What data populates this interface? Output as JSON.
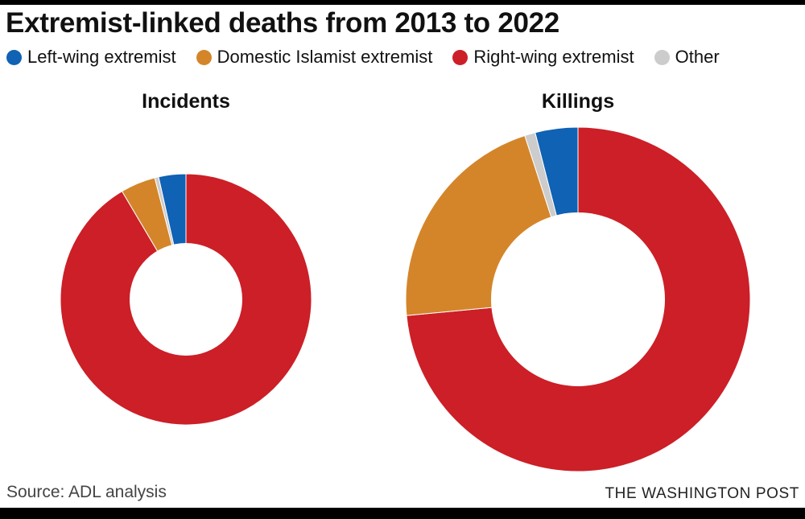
{
  "title": "Extremist-linked deaths from 2013 to 2022",
  "legend": [
    {
      "label": "Left-wing extremist",
      "color": "#0f62b4"
    },
    {
      "label": "Domestic Islamist extremist",
      "color": "#d4852a"
    },
    {
      "label": "Right-wing extremist",
      "color": "#cc1f27"
    },
    {
      "label": "Other",
      "color": "#cccccc"
    }
  ],
  "chart_data": [
    {
      "type": "pie",
      "title": "Incidents",
      "categories": [
        "Right-wing extremist",
        "Domestic Islamist extremist",
        "Other",
        "Left-wing extremist"
      ],
      "values": [
        91.5,
        4.5,
        0.5,
        3.5
      ],
      "unit": "percent"
    },
    {
      "type": "pie",
      "title": "Killings",
      "categories": [
        "Right-wing extremist",
        "Domestic Islamist extremist",
        "Other",
        "Left-wing extremist"
      ],
      "values": [
        73.5,
        21.5,
        1,
        4
      ],
      "unit": "percent"
    }
  ],
  "source": "Source: ADL analysis",
  "credit": "THE WASHINGTON POST"
}
